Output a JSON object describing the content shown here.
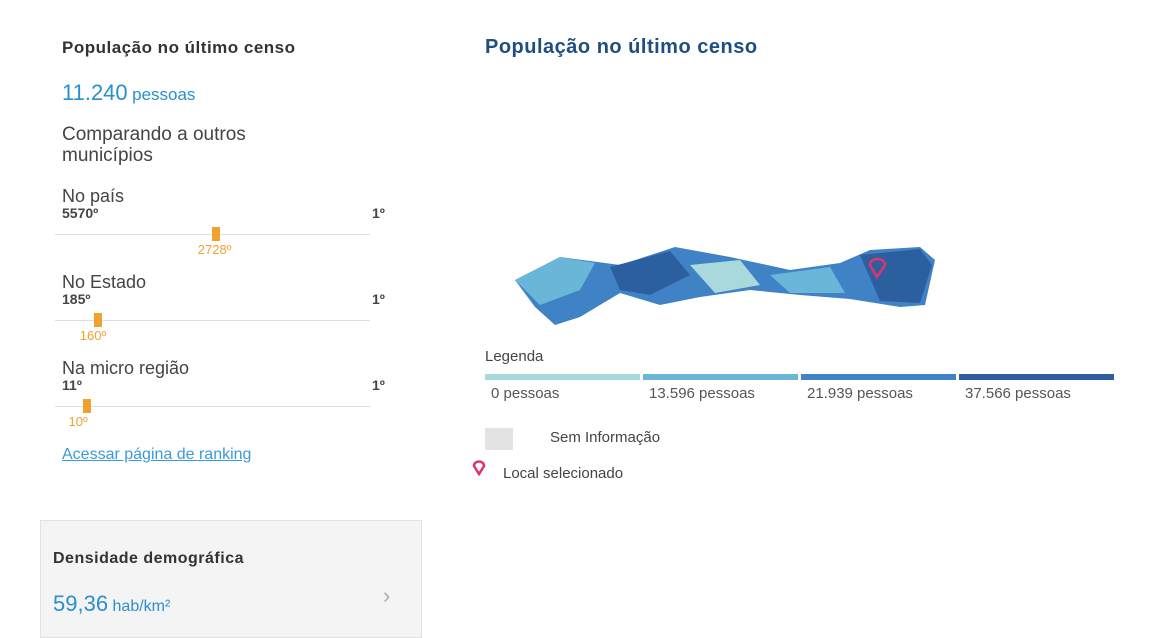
{
  "summary": {
    "title": "População no último censo",
    "value": "11.240",
    "unit": "pessoas"
  },
  "comparison": {
    "title": "Comparando a outros municípios",
    "ranks": [
      {
        "title": "No país",
        "low": {
          "value": 5570,
          "label": "5570º"
        },
        "high": {
          "value": 1,
          "label": "1º"
        },
        "position": {
          "value": 2728,
          "label": "2728º"
        }
      },
      {
        "title": "No Estado",
        "low": {
          "value": 185,
          "label": "185º"
        },
        "high": {
          "value": 1,
          "label": "1º"
        },
        "position": {
          "value": 160,
          "label": "160º"
        }
      },
      {
        "title": "Na micro região",
        "low": {
          "value": 11,
          "label": "11º"
        },
        "high": {
          "value": 1,
          "label": "1º"
        },
        "position": {
          "value": 10,
          "label": "10º"
        }
      }
    ],
    "link": "Acessar página de ranking"
  },
  "density_card": {
    "title": "Densidade demográfica",
    "value": "59,36",
    "unit": "hab/km²"
  },
  "map_panel": {
    "title": "População no último censo",
    "legend_title": "Legenda",
    "legend": [
      {
        "label": "0 pessoas",
        "color": "#a9d9dc"
      },
      {
        "label": "13.596 pessoas",
        "color": "#6ab6d8"
      },
      {
        "label": "21.939 pessoas",
        "color": "#3f82c6"
      },
      {
        "label": "37.566 pessoas",
        "color": "#2c5fa0"
      }
    ],
    "no_info": "Sem Informação",
    "selected": "Local selecionado"
  }
}
